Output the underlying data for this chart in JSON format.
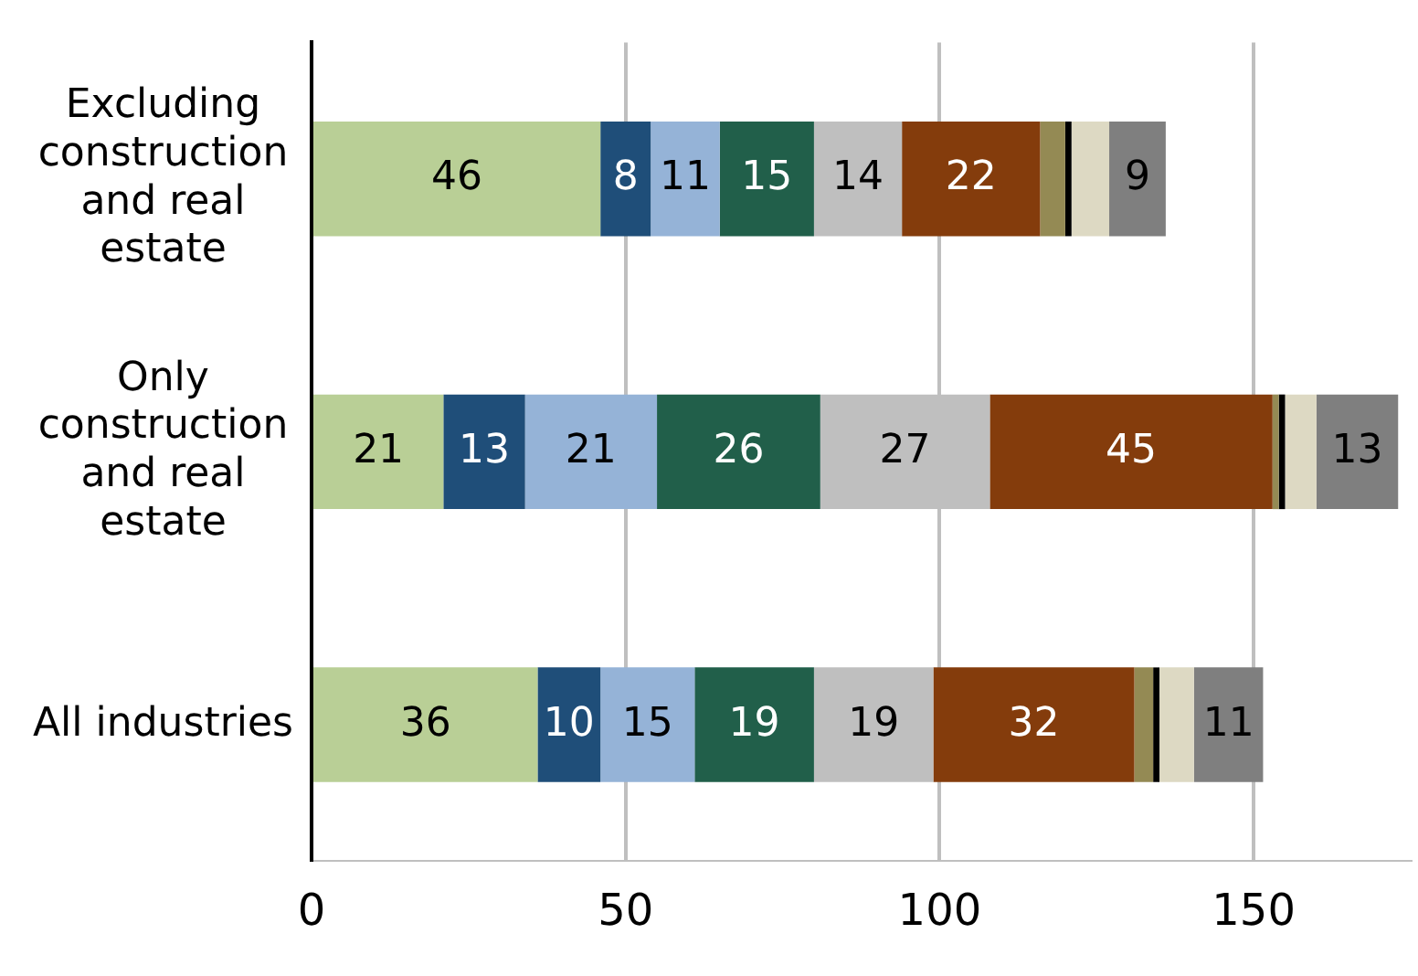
{
  "chart_data": {
    "type": "bar",
    "orientation": "horizontal",
    "stacked": true,
    "categories": [
      "Excluding construction and real estate",
      "Only construction and real estate",
      "All industries"
    ],
    "series": [
      {
        "color": "#b9cf96",
        "values": [
          46,
          21,
          36
        ],
        "value_labels": [
          "46",
          "21",
          "36"
        ]
      },
      {
        "color": "#1f4e79",
        "values": [
          8,
          13,
          10
        ],
        "value_labels": [
          "8",
          "13",
          "10"
        ]
      },
      {
        "color": "#95b3d7",
        "values": [
          11,
          21,
          15
        ],
        "value_labels": [
          "11",
          "21",
          "15"
        ]
      },
      {
        "color": "#215f4a",
        "values": [
          15,
          26,
          19
        ],
        "value_labels": [
          "15",
          "26",
          "19"
        ]
      },
      {
        "color": "#bfbfbf",
        "values": [
          14,
          27,
          19
        ],
        "value_labels": [
          "14",
          "27",
          "19"
        ]
      },
      {
        "color": "#843c0c",
        "values": [
          22,
          45,
          32
        ],
        "value_labels": [
          "22",
          "45",
          "32"
        ]
      },
      {
        "color": "#948a54",
        "values": [
          4,
          1,
          3
        ]
      },
      {
        "color": "#000000",
        "values": [
          1,
          1,
          1
        ]
      },
      {
        "color": "#ddd9c3",
        "values": [
          6,
          5,
          5.5
        ]
      },
      {
        "color": "#7f7f7f",
        "values": [
          9,
          13,
          11
        ],
        "value_labels": [
          "9",
          "13",
          "11"
        ]
      }
    ],
    "xlim": [
      0,
      175
    ],
    "xticks": [
      0,
      50,
      100,
      150
    ],
    "grid": "x",
    "legend": false
  }
}
